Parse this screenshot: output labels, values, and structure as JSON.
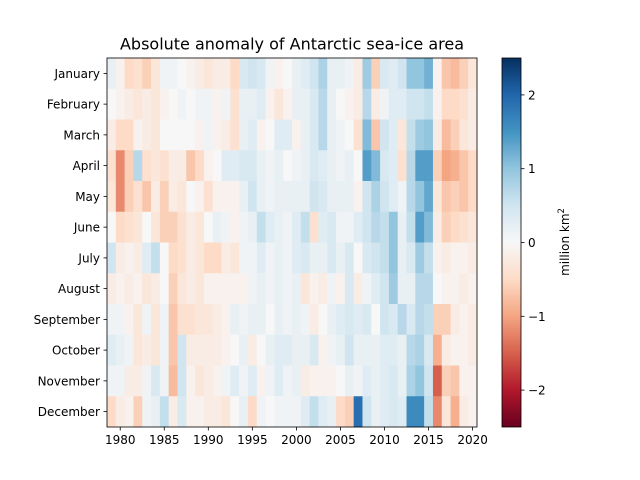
{
  "chart_data": {
    "type": "heatmap",
    "title": "Absolute anomaly of Antarctic sea-ice area",
    "xlabel": "",
    "ylabel": "",
    "x_start": 1979,
    "x_end": 2020,
    "xlim": [
      1978.5,
      2020.5
    ],
    "x_ticks": [
      1980,
      1985,
      1990,
      1995,
      2000,
      2005,
      2010,
      2015,
      2020
    ],
    "categories": [
      "January",
      "February",
      "March",
      "April",
      "May",
      "June",
      "July",
      "August",
      "September",
      "October",
      "November",
      "December"
    ],
    "colorbar": {
      "label_main": "million km",
      "label_sup": "2",
      "vmin": -2.5,
      "vmax": 2.5,
      "ticks": [
        -2,
        -1,
        0,
        1,
        2
      ],
      "tick_labels": [
        "−2",
        "−1",
        "0",
        "1",
        "2"
      ],
      "colormap": "RdBu",
      "stops": [
        "#67001f",
        "#b2182b",
        "#d6604d",
        "#f4a582",
        "#fddbc7",
        "#f7f7f7",
        "#d1e5f0",
        "#92c5de",
        "#4393c3",
        "#2166ac",
        "#053061"
      ]
    },
    "values": [
      [
        0.2,
        -0.1,
        -0.5,
        -0.4,
        -0.6,
        -0.3,
        0.1,
        0.1,
        0.0,
        -0.1,
        -0.2,
        -0.3,
        -0.2,
        -0.2,
        -0.5,
        0.4,
        0.5,
        0.4,
        0.1,
        -0.1,
        0.0,
        0.2,
        0.3,
        0.5,
        0.8,
        0.2,
        0.2,
        0.1,
        -0.2,
        0.9,
        -0.6,
        0.4,
        0.3,
        0.5,
        1.0,
        1.0,
        1.2,
        -0.1,
        -0.7,
        -0.8,
        -0.6,
        -0.3
      ],
      [
        0.0,
        -0.1,
        -0.2,
        -0.3,
        -0.2,
        -0.3,
        -0.1,
        0.0,
        0.1,
        0.0,
        0.1,
        0.1,
        -0.1,
        0.1,
        -0.4,
        0.2,
        0.2,
        0.3,
        -0.1,
        -0.3,
        -0.1,
        0.2,
        0.2,
        0.4,
        0.7,
        0.2,
        0.0,
        -0.1,
        -0.2,
        0.7,
        -0.2,
        0.1,
        0.3,
        0.3,
        0.5,
        0.5,
        0.6,
        -0.1,
        -0.5,
        -0.5,
        -0.4,
        -0.2
      ],
      [
        -0.2,
        -0.5,
        -0.5,
        -0.1,
        -0.2,
        -0.3,
        0.0,
        0.0,
        0.0,
        0.0,
        -0.1,
        0.1,
        -0.1,
        -0.2,
        -0.4,
        0.2,
        0.3,
        -0.1,
        0.0,
        0.3,
        0.3,
        -0.1,
        0.2,
        0.4,
        0.7,
        0.2,
        0.1,
        0.0,
        -0.4,
        1.1,
        -0.7,
        0.5,
        0.3,
        -0.3,
        0.6,
        0.9,
        1.0,
        -0.2,
        -0.8,
        -0.6,
        -0.3,
        -0.2
      ],
      [
        -0.4,
        -1.2,
        -0.6,
        0.7,
        -0.4,
        -0.3,
        -0.4,
        -0.2,
        -0.2,
        -0.7,
        -0.5,
        -0.1,
        0.0,
        0.3,
        0.3,
        0.4,
        0.4,
        0.2,
        0.1,
        0.2,
        0.0,
        0.1,
        0.2,
        0.4,
        0.3,
        0.2,
        0.1,
        0.2,
        0.0,
        1.4,
        1.1,
        0.4,
        0.3,
        -0.4,
        0.7,
        1.4,
        1.4,
        -0.6,
        -1.0,
        -0.9,
        -0.7,
        -0.5
      ],
      [
        -0.3,
        -1.2,
        -0.6,
        -0.4,
        -0.7,
        -0.2,
        -0.6,
        -0.2,
        -0.3,
        0.0,
        -0.1,
        -0.4,
        -0.1,
        -0.1,
        -0.1,
        0.2,
        0.5,
        0.2,
        0.1,
        0.2,
        0.2,
        0.2,
        0.2,
        0.5,
        0.4,
        0.2,
        0.2,
        0.2,
        -0.1,
        0.5,
        0.8,
        0.5,
        0.3,
        0.1,
        0.7,
        1.0,
        1.3,
        -0.3,
        -0.7,
        -0.6,
        -0.7,
        -0.5
      ],
      [
        0.0,
        -0.5,
        -0.4,
        -0.3,
        0.0,
        -0.3,
        -0.6,
        -0.6,
        -0.4,
        -0.2,
        -0.3,
        0.0,
        0.2,
        0.1,
        -0.1,
        0.1,
        0.2,
        0.6,
        0.3,
        0.2,
        0.1,
        0.3,
        0.6,
        -0.4,
        0.3,
        0.4,
        0.1,
        0.1,
        0.3,
        0.5,
        0.7,
        0.6,
        1.0,
        0.2,
        0.6,
        1.4,
        1.1,
        -0.2,
        -0.6,
        -0.5,
        -0.4,
        -0.3
      ],
      [
        0.5,
        -0.2,
        -0.1,
        -0.2,
        0.3,
        0.6,
        0.0,
        -0.5,
        -0.4,
        -0.2,
        -0.3,
        -0.5,
        -0.5,
        -0.2,
        -0.3,
        0.1,
        0.1,
        0.3,
        0.1,
        0.2,
        0.1,
        0.3,
        0.4,
        0.2,
        0.2,
        0.4,
        0.2,
        0.4,
        0.0,
        0.4,
        0.5,
        0.6,
        1.0,
        0.2,
        0.4,
        0.9,
        0.6,
        -0.1,
        -0.2,
        -0.1,
        -0.1,
        -0.2
      ],
      [
        -0.2,
        -0.1,
        -0.2,
        -0.1,
        -0.3,
        -0.2,
        0.0,
        -0.6,
        -0.3,
        -0.2,
        -0.3,
        -0.1,
        -0.1,
        -0.1,
        -0.1,
        -0.1,
        0.1,
        0.2,
        0.1,
        0.2,
        0.1,
        0.2,
        -0.3,
        -0.1,
        -0.2,
        0.1,
        -0.1,
        0.4,
        -0.2,
        0.1,
        0.3,
        0.5,
        0.9,
        0.2,
        0.2,
        0.7,
        0.7,
        0.0,
        -0.1,
        -0.1,
        -0.2,
        -0.1
      ],
      [
        0.1,
        0.1,
        -0.1,
        -0.3,
        0.1,
        -0.3,
        0.1,
        -0.7,
        -0.4,
        -0.4,
        -0.3,
        -0.3,
        -0.2,
        -0.1,
        0.2,
        0.1,
        0.2,
        0.2,
        0.0,
        0.2,
        0.1,
        0.2,
        0.1,
        -0.2,
        0.0,
        0.2,
        0.3,
        0.4,
        0.3,
        0.4,
        0.0,
        0.5,
        0.4,
        0.7,
        0.4,
        0.7,
        0.6,
        -0.6,
        -0.6,
        -0.2,
        -0.1,
        -0.2
      ],
      [
        0.3,
        0.2,
        0.1,
        -0.3,
        -0.2,
        -0.3,
        0.1,
        -0.7,
        0.5,
        -0.2,
        -0.2,
        -0.2,
        -0.2,
        -0.1,
        0.0,
        0.2,
        -0.2,
        0.0,
        0.2,
        0.3,
        0.3,
        0.2,
        0.2,
        0.4,
        -0.1,
        0.1,
        0.2,
        0.5,
        0.2,
        0.2,
        0.2,
        0.3,
        0.3,
        0.2,
        0.7,
        0.8,
        0.4,
        -0.9,
        -0.2,
        -0.1,
        -0.1,
        -0.2
      ],
      [
        0.1,
        0.1,
        -0.2,
        -0.2,
        0.1,
        0.4,
        0.1,
        -0.8,
        0.5,
        -0.1,
        -0.3,
        -0.2,
        -0.1,
        0.1,
        0.3,
        0.1,
        0.3,
        -0.1,
        0.1,
        0.3,
        0.1,
        0.2,
        -0.2,
        -0.1,
        -0.1,
        -0.1,
        0.0,
        0.2,
        0.1,
        0.3,
        0.2,
        0.3,
        0.4,
        0.2,
        0.8,
        1.0,
        0.5,
        -1.5,
        -0.6,
        -0.7,
        -0.1,
        -0.1
      ],
      [
        -0.5,
        -0.2,
        -0.1,
        -0.6,
        0.1,
        0.2,
        0.6,
        -0.2,
        0.4,
        -0.1,
        -0.1,
        -0.2,
        -0.2,
        -0.3,
        0.0,
        0.2,
        -0.5,
        0.1,
        0.0,
        0.1,
        0.1,
        0.1,
        0.3,
        0.6,
        0.3,
        0.2,
        -0.5,
        -0.6,
        1.9,
        0.5,
        0.2,
        0.3,
        0.4,
        0.3,
        1.6,
        1.6,
        0.6,
        -1.2,
        -0.3,
        -0.9,
        -0.2,
        -0.1
      ]
    ]
  }
}
